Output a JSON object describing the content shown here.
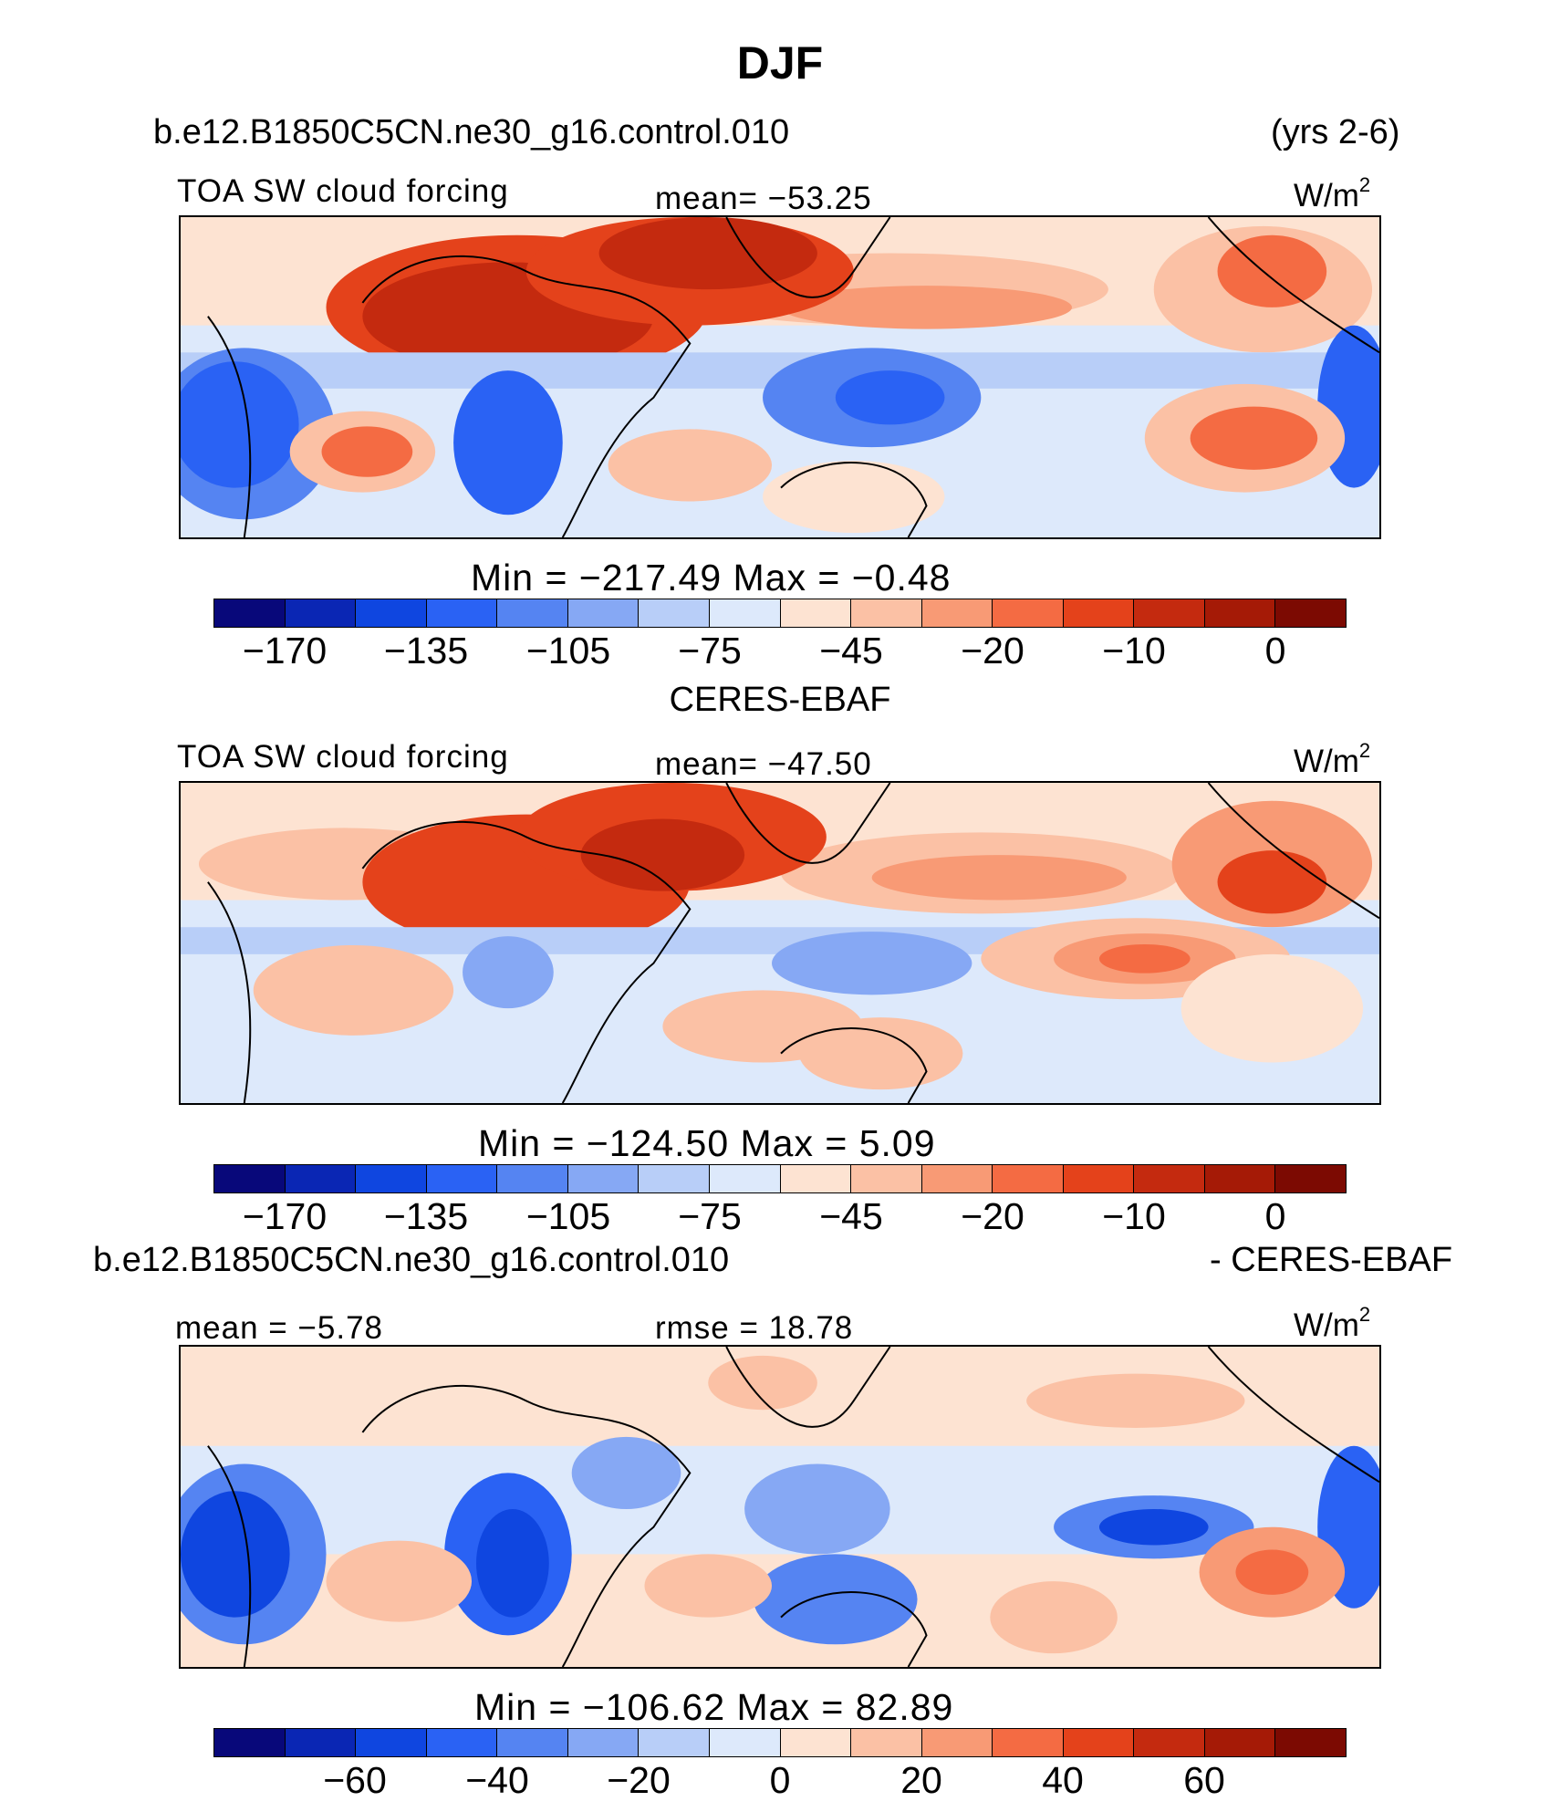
{
  "title": "DJF",
  "top": {
    "case_label": "b.e12.B1850C5CN.ne30_g16.control.010",
    "years_label": "(yrs 2-6)",
    "variable": "TOA SW cloud forcing",
    "stat": "mean= −53.25",
    "units_base": "W/m",
    "units_exp": "2",
    "minmax": "Min  =  −217.49  Max  =   −0.48",
    "ticks": [
      "−170",
      "−135",
      "−105",
      "−75",
      "−45",
      "−20",
      "−10",
      "0"
    ]
  },
  "middle": {
    "case_label": "CERES-EBAF",
    "variable": "TOA SW cloud forcing",
    "stat": "mean= −47.50",
    "units_base": "W/m",
    "units_exp": "2",
    "minmax": "Min  =  −124.50  Max  =     5.09",
    "ticks": [
      "−170",
      "−135",
      "−105",
      "−75",
      "−45",
      "−20",
      "−10",
      "0"
    ]
  },
  "bottom": {
    "case_label": "b.e12.B1850C5CN.ne30_g16.control.010",
    "minus_label": "- CERES-EBAF",
    "mean": "mean  =   −5.78",
    "rmse": "rmse  =   18.78",
    "units_base": "W/m",
    "units_exp": "2",
    "minmax": "Min  =  −106.62  Max  =   82.89",
    "ticks": [
      "−60",
      "−40",
      "−20",
      "0",
      "20",
      "40",
      "60"
    ]
  },
  "colors": {
    "palette": [
      "#08087a",
      "#0a26b4",
      "#0f46e0",
      "#2a62f4",
      "#5584f2",
      "#86a8f4",
      "#b8cef8",
      "#dde9fb",
      "#fde3d2",
      "#fbc1a5",
      "#f89a75",
      "#f46b43",
      "#e4421b",
      "#c42a0f",
      "#a51a06",
      "#7c0a02"
    ],
    "ocean_tropics": "#d6e5fa",
    "coastline": "#000000"
  }
}
